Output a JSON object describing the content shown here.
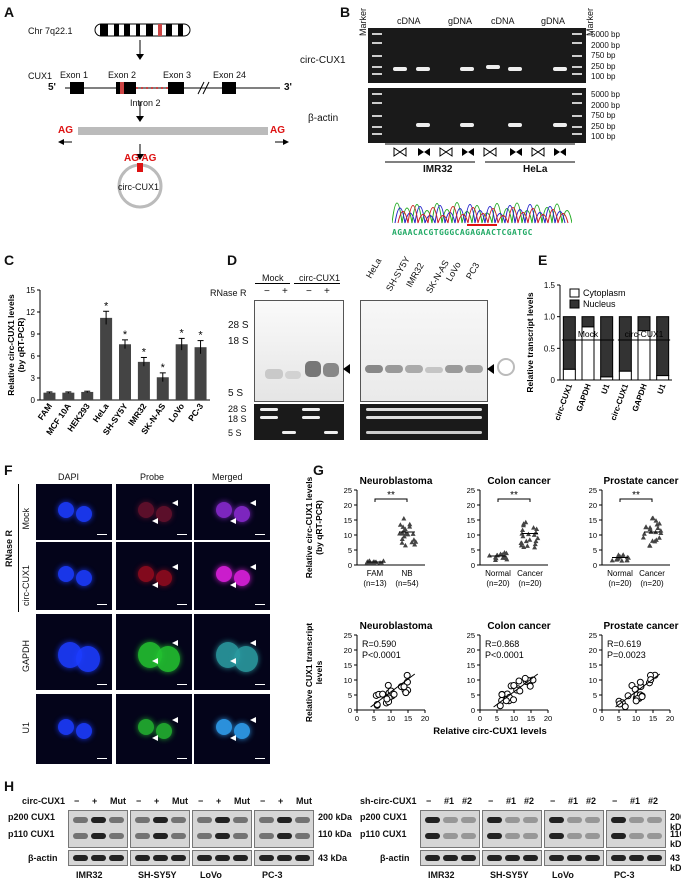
{
  "panelA": {
    "label": "A",
    "chr": "Chr 7q22.1",
    "gene": "CUX1",
    "exon1": "Exon 1",
    "exon2": "Exon 2",
    "exon3": "Exon 3",
    "exon24": "Exon 24",
    "five": "5'",
    "three": "3'",
    "intron": "Intron 2",
    "ag": "AG",
    "agag": "AG AG",
    "circ": "circ-CUX1"
  },
  "panelB": {
    "label": "B",
    "marker": "Marker",
    "cdna": "cDNA",
    "gdna": "gDNA",
    "row1": "circ-CUX1",
    "row2": "β-actin",
    "sizes": [
      "5000 bp",
      "2000 bp",
      "750 bp",
      "250 bp",
      "100 bp"
    ],
    "cell1": "IMR32",
    "cell2": "HeLa",
    "sequence": "AGAACACGTGGGCAGAGAACTCGATGC"
  },
  "panelC": {
    "label": "C",
    "chart_data": {
      "type": "bar",
      "ylabel": "Relative circ-CUX1 levels\n(by qRT-PCR)",
      "ylim": [
        0,
        15
      ],
      "yticks": [
        "0",
        "3",
        "6",
        "9",
        "12",
        "15"
      ],
      "categories": [
        "FAM",
        "MCF 10A",
        "HEK293",
        "HeLa",
        "SH-SY5Y",
        "IMR32",
        "SK-N-AS",
        "LoVo",
        "PC-3"
      ],
      "values": [
        1.0,
        1.0,
        1.1,
        11.2,
        7.6,
        5.2,
        3.1,
        7.6,
        7.2
      ],
      "errors": [
        0.1,
        0.1,
        0.1,
        0.9,
        0.6,
        0.6,
        0.6,
        0.8,
        0.9
      ],
      "significance": [
        "",
        "",
        "",
        "*",
        "*",
        "*",
        "*",
        "*",
        "*"
      ]
    }
  },
  "panelD": {
    "label": "D",
    "mock": "Mock",
    "circ": "circ-CUX1",
    "rnase": "RNase R",
    "signs": [
      "−",
      "+",
      "−",
      "+"
    ],
    "markers": [
      "28 S",
      "18 S",
      "5 S"
    ],
    "cells": [
      "HeLa",
      "SH-SY5Y",
      "IMR32",
      "SK-N-AS",
      "LoVo",
      "PC3"
    ]
  },
  "panelE": {
    "label": "E",
    "chart_data": {
      "type": "bar",
      "ylabel": "Relative transcript levels",
      "ylim": [
        0,
        1.5
      ],
      "yticks": [
        "0",
        "0.5",
        "1.0",
        "1.5"
      ],
      "groups": [
        "Mock",
        "circ-CUX1"
      ],
      "categories": [
        "circ-CUX1",
        "GAPDH",
        "U1",
        "circ-CUX1",
        "GAPDH",
        "U1"
      ],
      "series": [
        {
          "name": "Cytoplasm",
          "values": [
            0.17,
            0.84,
            0.05,
            0.14,
            0.78,
            0.07
          ]
        },
        {
          "name": "Nucleus",
          "values": [
            0.83,
            0.16,
            0.95,
            0.86,
            0.22,
            0.93
          ]
        }
      ]
    }
  },
  "panelF": {
    "label": "F",
    "cols": [
      "DAPI",
      "Probe",
      "Merged"
    ],
    "rnase": "RNase R",
    "rows": [
      "Mock",
      "circ-CUX1",
      "GAPDH",
      "U1"
    ]
  },
  "panelG": {
    "label": "G",
    "top": {
      "ylabel": "Relative circ-CUX1 levels\n(by qRT-PCR)",
      "yticks": [
        "0",
        "5",
        "10",
        "15",
        "20",
        "25"
      ],
      "sig": "**",
      "charts": [
        {
          "title": "Neuroblastoma",
          "groups": [
            "FAM",
            "NB"
          ],
          "n": [
            "(n=13)",
            "(n=54)"
          ],
          "means": [
            1.0,
            11.0
          ]
        },
        {
          "title": "Colon cancer",
          "groups": [
            "Normal",
            "Cancer"
          ],
          "n": [
            "(n=20)",
            "(n=20)"
          ],
          "means": [
            3.0,
            10.5
          ]
        },
        {
          "title": "Prostate cancer",
          "groups": [
            "Normal",
            "Cancer"
          ],
          "n": [
            "(n=20)",
            "(n=20)"
          ],
          "means": [
            2.5,
            11.0
          ]
        }
      ]
    },
    "bottom": {
      "ylabel": "Relative CUX1 transcript\nlevels",
      "xlabel": "Relative circ-CUX1 levels",
      "yticks": [
        "0",
        "5",
        "10",
        "15",
        "20",
        "25"
      ],
      "xticks": [
        "0",
        "5",
        "10",
        "15",
        "20"
      ],
      "charts": [
        {
          "title": "Neuroblastoma",
          "r": "R=0.590",
          "p": "P<0.0001"
        },
        {
          "title": "Colon cancer",
          "r": "R=0.868",
          "p": "P<0.0001"
        },
        {
          "title": "Prostate cancer",
          "r": "R=0.619",
          "p": "P=0.0023"
        }
      ]
    }
  },
  "panelH": {
    "label": "H",
    "left": {
      "title": "circ-CUX1",
      "signs": [
        "−",
        "+",
        "Mut"
      ],
      "rows": [
        "p200 CUX1",
        "p110 CUX1",
        "β-actin"
      ],
      "kda": [
        "200 kDa",
        "110 kDa",
        "43 kDa"
      ],
      "cells": [
        "IMR32",
        "SH-SY5Y",
        "LoVo",
        "PC-3"
      ]
    },
    "right": {
      "title": "sh-circ-CUX1",
      "signs": [
        "−",
        "#1",
        "#2"
      ],
      "rows": [
        "p200 CUX1",
        "p110 CUX1",
        "β-actin"
      ],
      "kda": [
        "200 kDa",
        "110 kDa",
        "43 kDa"
      ],
      "cells": [
        "IMR32",
        "SH-SY5Y",
        "LoVo",
        "PC-3"
      ]
    }
  }
}
